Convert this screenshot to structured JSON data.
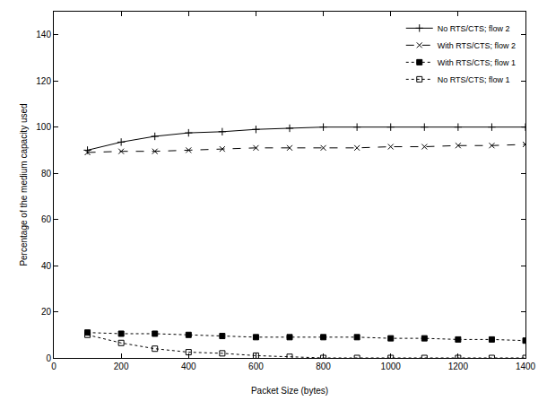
{
  "chart_data": {
    "type": "line",
    "x_label": "Packet Size (bytes)",
    "y_label": "Percentage of the medium capacity used",
    "x": [
      100,
      200,
      300,
      400,
      500,
      600,
      700,
      800,
      900,
      1000,
      1100,
      1200,
      1300,
      1400
    ],
    "series": [
      {
        "name": "No RTS/CTS; flow 2",
        "color": "#000000",
        "marker": "plus",
        "line_style": "solid",
        "values": [
          90,
          93.5,
          96,
          97.5,
          98,
          99,
          99.5,
          100,
          100,
          100,
          100,
          100,
          100,
          100
        ]
      },
      {
        "name": "With RTS/CTS; flow 2",
        "color": "#000000",
        "marker": "x",
        "line_style": "dash",
        "values": [
          89,
          89.5,
          89.5,
          90,
          90.5,
          91,
          91,
          91,
          91,
          91.5,
          91.5,
          92,
          92,
          92.5
        ]
      },
      {
        "name": "With RTS/CTS; flow 1",
        "color": "#000000",
        "marker": "square",
        "line_style": "dot",
        "values": [
          11,
          10.5,
          10.5,
          10,
          9.5,
          9,
          9,
          9,
          9,
          8.5,
          8.5,
          8,
          8,
          7.5
        ]
      },
      {
        "name": "No RTS/CTS; flow 1",
        "color": "#000000",
        "marker": "square-open",
        "line_style": "dot",
        "values": [
          10,
          6.5,
          4,
          2.5,
          2,
          1,
          0.5,
          0,
          0,
          0,
          0,
          0,
          0,
          0
        ]
      }
    ],
    "xlim": [
      0,
      1400
    ],
    "xticks": [
      0,
      200,
      400,
      600,
      800,
      1000,
      1200,
      1400
    ],
    "ylim": [
      0,
      150
    ],
    "yticks": [
      0,
      20,
      40,
      60,
      80,
      100,
      120,
      140
    ],
    "grid": false,
    "legend": "top right"
  }
}
